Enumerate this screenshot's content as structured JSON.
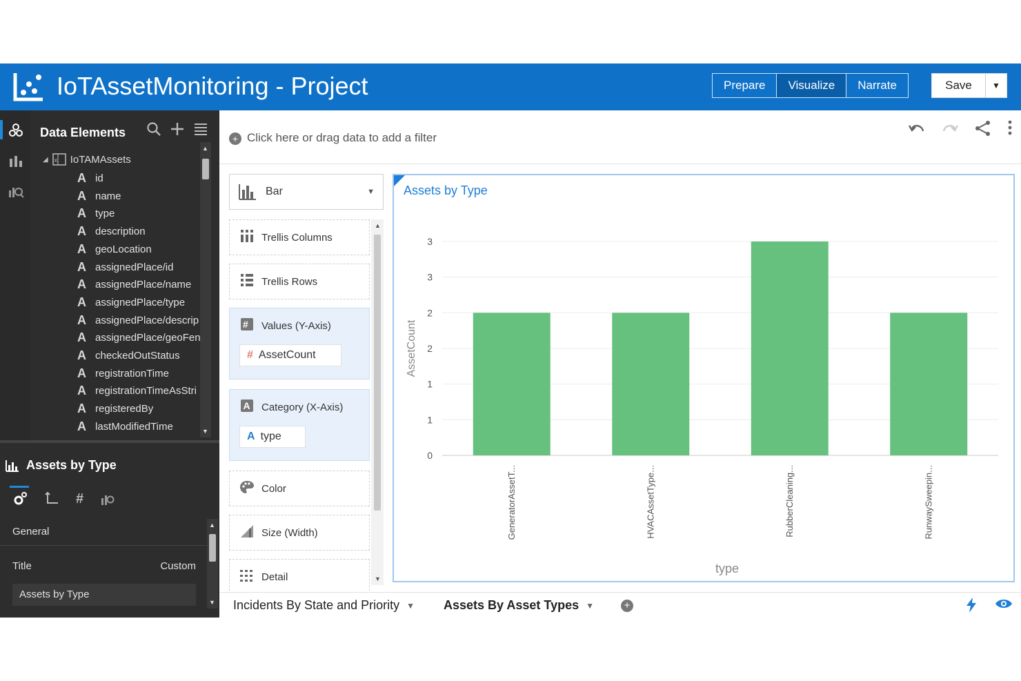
{
  "header": {
    "title": "IoTAssetMonitoring - Project",
    "modes": [
      "Prepare",
      "Visualize",
      "Narrate"
    ],
    "active_mode": "Visualize",
    "save_label": "Save"
  },
  "left": {
    "panel_title": "Data Elements",
    "source": "IoTAMAssets",
    "fields": [
      "id",
      "name",
      "type",
      "description",
      "geoLocation",
      "assignedPlace/id",
      "assignedPlace/name",
      "assignedPlace/type",
      "assignedPlace/descrip",
      "assignedPlace/geoFen",
      "checkedOutStatus",
      "registrationTime",
      "registrationTimeAsStri",
      "registeredBy",
      "lastModifiedTime"
    ],
    "properties_title": "Assets by Type",
    "section": "General",
    "title_label": "Title",
    "title_mode": "Custom",
    "title_value": "Assets by Type"
  },
  "filter": {
    "hint": "Click here or drag data to add a filter"
  },
  "grammar": {
    "viz_type": "Bar",
    "trellis_columns": "Trellis Columns",
    "trellis_rows": "Trellis Rows",
    "values_label": "Values (Y-Axis)",
    "values_chip": "AssetCount",
    "category_label": "Category (X-Axis)",
    "category_chip": "type",
    "color_label": "Color",
    "size_label": "Size (Width)",
    "detail_label": "Detail"
  },
  "chart_data": {
    "type": "bar",
    "title": "Assets by Type",
    "xlabel": "type",
    "ylabel": "AssetCount",
    "categories": [
      "GeneratorAssetT...",
      "HVACAssetType...",
      "RubberCleaning...",
      "RunwaySweepin..."
    ],
    "values": [
      2,
      2,
      3,
      2
    ],
    "ylim": [
      0,
      3
    ],
    "ytick_values": [
      0,
      0.5,
      1,
      1.5,
      2,
      2.5,
      3
    ],
    "ytick_labels": [
      "0",
      "1",
      "1",
      "2",
      "2",
      "3",
      "3"
    ],
    "bar_color": "#66c17f",
    "grid": true
  },
  "canvas_tabs": [
    "Incidents By State and Priority",
    "Assets By Asset Types"
  ],
  "accent_color": "#0f72c8"
}
